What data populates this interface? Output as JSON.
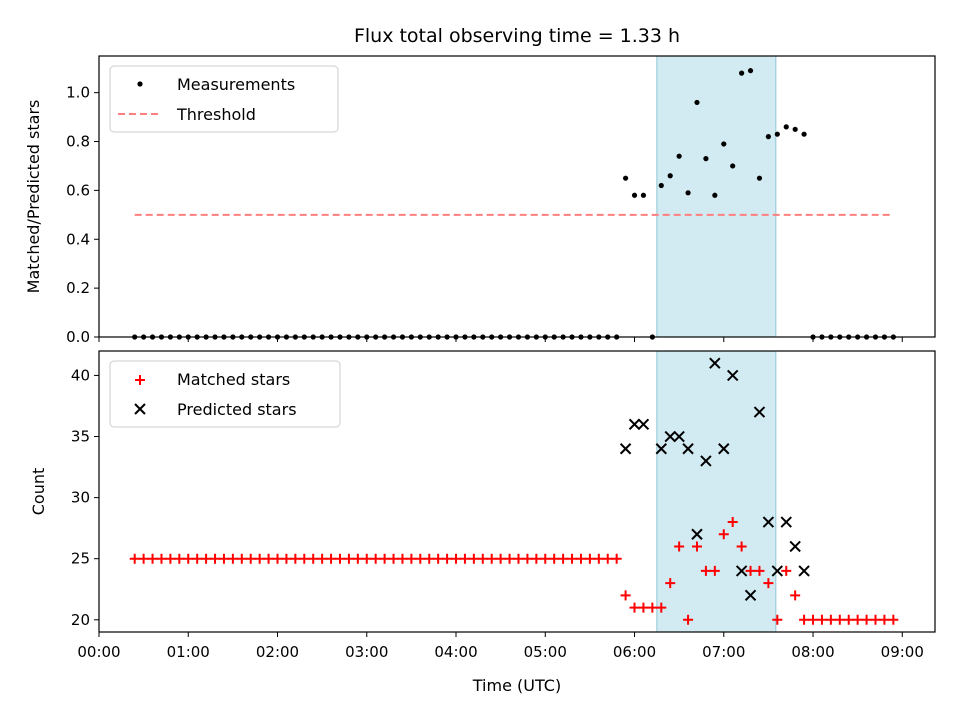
{
  "chart_data": {
    "title": "Flux total observing time = 1.33 h",
    "xlabel": "Time (UTC)",
    "x_ticks": [
      "00:00",
      "01:00",
      "02:00",
      "03:00",
      "04:00",
      "05:00",
      "06:00",
      "07:00",
      "08:00",
      "09:00"
    ],
    "xlim": [
      "00:00",
      "09:22"
    ],
    "shaded_span": [
      "06:15",
      "07:35"
    ],
    "colors": {
      "measurements": "#000000",
      "threshold": "#ff7f7f",
      "matched": "#ff0000",
      "predicted": "#000000",
      "span": "#add8e6"
    },
    "panels": [
      {
        "type": "scatter",
        "ylabel": "Matched/Predicted stars",
        "ylim": [
          0.0,
          1.15
        ],
        "y_ticks": [
          "0.0",
          "0.2",
          "0.4",
          "0.6",
          "0.8",
          "1.0"
        ],
        "legend": {
          "placement": "top-left",
          "entries": [
            "Measurements",
            "Threshold"
          ]
        },
        "threshold": {
          "name": "Threshold",
          "y": 0.5,
          "x_range": [
            "00:24",
            "08:54"
          ]
        },
        "series": [
          {
            "name": "Measurements",
            "marker": "dot",
            "points": [
              [
                "00:24",
                0
              ],
              [
                "00:30",
                0
              ],
              [
                "00:36",
                0
              ],
              [
                "00:42",
                0
              ],
              [
                "00:48",
                0
              ],
              [
                "00:54",
                0
              ],
              [
                "01:00",
                0
              ],
              [
                "01:06",
                0
              ],
              [
                "01:12",
                0
              ],
              [
                "01:18",
                0
              ],
              [
                "01:24",
                0
              ],
              [
                "01:30",
                0
              ],
              [
                "01:36",
                0
              ],
              [
                "01:42",
                0
              ],
              [
                "01:48",
                0
              ],
              [
                "01:54",
                0
              ],
              [
                "02:00",
                0
              ],
              [
                "02:06",
                0
              ],
              [
                "02:12",
                0
              ],
              [
                "02:18",
                0
              ],
              [
                "02:24",
                0
              ],
              [
                "02:30",
                0
              ],
              [
                "02:36",
                0
              ],
              [
                "02:42",
                0
              ],
              [
                "02:48",
                0
              ],
              [
                "02:54",
                0
              ],
              [
                "03:00",
                0
              ],
              [
                "03:06",
                0
              ],
              [
                "03:12",
                0
              ],
              [
                "03:18",
                0
              ],
              [
                "03:24",
                0
              ],
              [
                "03:30",
                0
              ],
              [
                "03:36",
                0
              ],
              [
                "03:42",
                0
              ],
              [
                "03:48",
                0
              ],
              [
                "03:54",
                0
              ],
              [
                "04:00",
                0
              ],
              [
                "04:06",
                0
              ],
              [
                "04:12",
                0
              ],
              [
                "04:18",
                0
              ],
              [
                "04:24",
                0
              ],
              [
                "04:30",
                0
              ],
              [
                "04:36",
                0
              ],
              [
                "04:42",
                0
              ],
              [
                "04:48",
                0
              ],
              [
                "04:54",
                0
              ],
              [
                "05:00",
                0
              ],
              [
                "05:06",
                0
              ],
              [
                "05:12",
                0
              ],
              [
                "05:18",
                0
              ],
              [
                "05:24",
                0
              ],
              [
                "05:30",
                0
              ],
              [
                "05:36",
                0
              ],
              [
                "05:42",
                0
              ],
              [
                "05:48",
                0
              ],
              [
                "05:54",
                0.65
              ],
              [
                "06:00",
                0.58
              ],
              [
                "06:06",
                0.58
              ],
              [
                "06:12",
                0
              ],
              [
                "06:18",
                0.62
              ],
              [
                "06:24",
                0.66
              ],
              [
                "06:30",
                0.74
              ],
              [
                "06:36",
                0.59
              ],
              [
                "06:42",
                0.96
              ],
              [
                "06:48",
                0.73
              ],
              [
                "06:54",
                0.58
              ],
              [
                "07:00",
                0.79
              ],
              [
                "07:06",
                0.7
              ],
              [
                "07:12",
                1.08
              ],
              [
                "07:18",
                1.09
              ],
              [
                "07:24",
                0.65
              ],
              [
                "07:30",
                0.82
              ],
              [
                "07:36",
                0.83
              ],
              [
                "07:42",
                0.86
              ],
              [
                "07:48",
                0.85
              ],
              [
                "07:54",
                0.83
              ],
              [
                "08:00",
                0
              ],
              [
                "08:06",
                0
              ],
              [
                "08:12",
                0
              ],
              [
                "08:18",
                0
              ],
              [
                "08:24",
                0
              ],
              [
                "08:30",
                0
              ],
              [
                "08:36",
                0
              ],
              [
                "08:42",
                0
              ],
              [
                "08:48",
                0
              ],
              [
                "08:54",
                0
              ]
            ]
          }
        ]
      },
      {
        "type": "scatter",
        "ylabel": "Count",
        "ylim": [
          19,
          42
        ],
        "y_ticks": [
          "20",
          "25",
          "30",
          "35",
          "40"
        ],
        "legend": {
          "placement": "top-left",
          "entries": [
            "Matched stars",
            "Predicted stars"
          ]
        },
        "series": [
          {
            "name": "Matched stars",
            "marker": "plus",
            "points": [
              [
                "00:24",
                25
              ],
              [
                "00:30",
                25
              ],
              [
                "00:36",
                25
              ],
              [
                "00:42",
                25
              ],
              [
                "00:48",
                25
              ],
              [
                "00:54",
                25
              ],
              [
                "01:00",
                25
              ],
              [
                "01:06",
                25
              ],
              [
                "01:12",
                25
              ],
              [
                "01:18",
                25
              ],
              [
                "01:24",
                25
              ],
              [
                "01:30",
                25
              ],
              [
                "01:36",
                25
              ],
              [
                "01:42",
                25
              ],
              [
                "01:48",
                25
              ],
              [
                "01:54",
                25
              ],
              [
                "02:00",
                25
              ],
              [
                "02:06",
                25
              ],
              [
                "02:12",
                25
              ],
              [
                "02:18",
                25
              ],
              [
                "02:24",
                25
              ],
              [
                "02:30",
                25
              ],
              [
                "02:36",
                25
              ],
              [
                "02:42",
                25
              ],
              [
                "02:48",
                25
              ],
              [
                "02:54",
                25
              ],
              [
                "03:00",
                25
              ],
              [
                "03:06",
                25
              ],
              [
                "03:12",
                25
              ],
              [
                "03:18",
                25
              ],
              [
                "03:24",
                25
              ],
              [
                "03:30",
                25
              ],
              [
                "03:36",
                25
              ],
              [
                "03:42",
                25
              ],
              [
                "03:48",
                25
              ],
              [
                "03:54",
                25
              ],
              [
                "04:00",
                25
              ],
              [
                "04:06",
                25
              ],
              [
                "04:12",
                25
              ],
              [
                "04:18",
                25
              ],
              [
                "04:24",
                25
              ],
              [
                "04:30",
                25
              ],
              [
                "04:36",
                25
              ],
              [
                "04:42",
                25
              ],
              [
                "04:48",
                25
              ],
              [
                "04:54",
                25
              ],
              [
                "05:00",
                25
              ],
              [
                "05:06",
                25
              ],
              [
                "05:12",
                25
              ],
              [
                "05:18",
                25
              ],
              [
                "05:24",
                25
              ],
              [
                "05:30",
                25
              ],
              [
                "05:36",
                25
              ],
              [
                "05:42",
                25
              ],
              [
                "05:48",
                25
              ],
              [
                "05:54",
                22
              ],
              [
                "06:00",
                21
              ],
              [
                "06:06",
                21
              ],
              [
                "06:12",
                21
              ],
              [
                "06:18",
                21
              ],
              [
                "06:24",
                23
              ],
              [
                "06:30",
                26
              ],
              [
                "06:36",
                20
              ],
              [
                "06:42",
                26
              ],
              [
                "06:48",
                24
              ],
              [
                "06:54",
                24
              ],
              [
                "07:00",
                27
              ],
              [
                "07:06",
                28
              ],
              [
                "07:12",
                26
              ],
              [
                "07:18",
                24
              ],
              [
                "07:24",
                24
              ],
              [
                "07:30",
                23
              ],
              [
                "07:36",
                20
              ],
              [
                "07:42",
                24
              ],
              [
                "07:48",
                22
              ],
              [
                "07:54",
                20
              ],
              [
                "08:00",
                20
              ],
              [
                "08:06",
                20
              ],
              [
                "08:12",
                20
              ],
              [
                "08:18",
                20
              ],
              [
                "08:24",
                20
              ],
              [
                "08:30",
                20
              ],
              [
                "08:36",
                20
              ],
              [
                "08:42",
                20
              ],
              [
                "08:48",
                20
              ],
              [
                "08:54",
                20
              ]
            ]
          },
          {
            "name": "Predicted stars",
            "marker": "x",
            "points": [
              [
                "05:54",
                34
              ],
              [
                "06:00",
                36
              ],
              [
                "06:06",
                36
              ],
              [
                "06:18",
                34
              ],
              [
                "06:24",
                35
              ],
              [
                "06:30",
                35
              ],
              [
                "06:36",
                34
              ],
              [
                "06:42",
                27
              ],
              [
                "06:48",
                33
              ],
              [
                "06:54",
                41
              ],
              [
                "07:00",
                34
              ],
              [
                "07:06",
                40
              ],
              [
                "07:12",
                24
              ],
              [
                "07:18",
                22
              ],
              [
                "07:24",
                37
              ],
              [
                "07:30",
                28
              ],
              [
                "07:36",
                24
              ],
              [
                "07:42",
                28
              ],
              [
                "07:48",
                26
              ],
              [
                "07:54",
                24
              ]
            ]
          }
        ]
      }
    ]
  }
}
